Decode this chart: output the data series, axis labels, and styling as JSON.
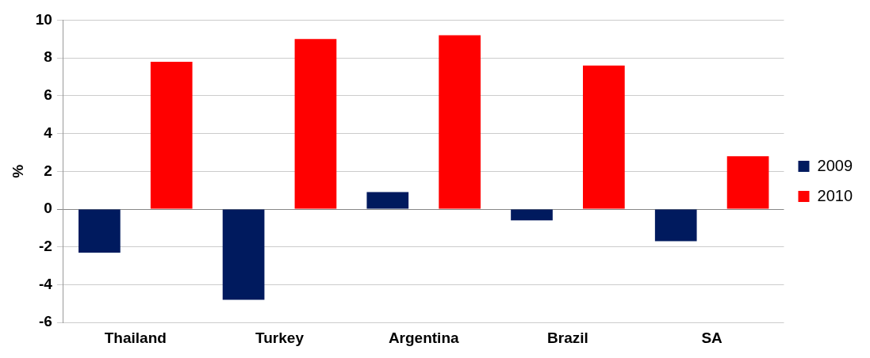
{
  "chart_data": {
    "type": "bar",
    "ylabel": "%",
    "categories": [
      "Thailand",
      "Turkey",
      "Argentina",
      "Brazil",
      "SA"
    ],
    "series": [
      {
        "name": "2009",
        "color": "#001a5e",
        "values": [
          -2.3,
          -4.8,
          0.9,
          -0.6,
          -1.7
        ]
      },
      {
        "name": "2010",
        "color": "#ff0000",
        "values": [
          7.8,
          9.0,
          9.2,
          7.6,
          2.8
        ]
      }
    ],
    "ylim": [
      -6,
      10
    ],
    "yticks": [
      -6,
      -4,
      -2,
      0,
      2,
      4,
      6,
      8,
      10
    ],
    "grid": "y",
    "legend": "right"
  }
}
